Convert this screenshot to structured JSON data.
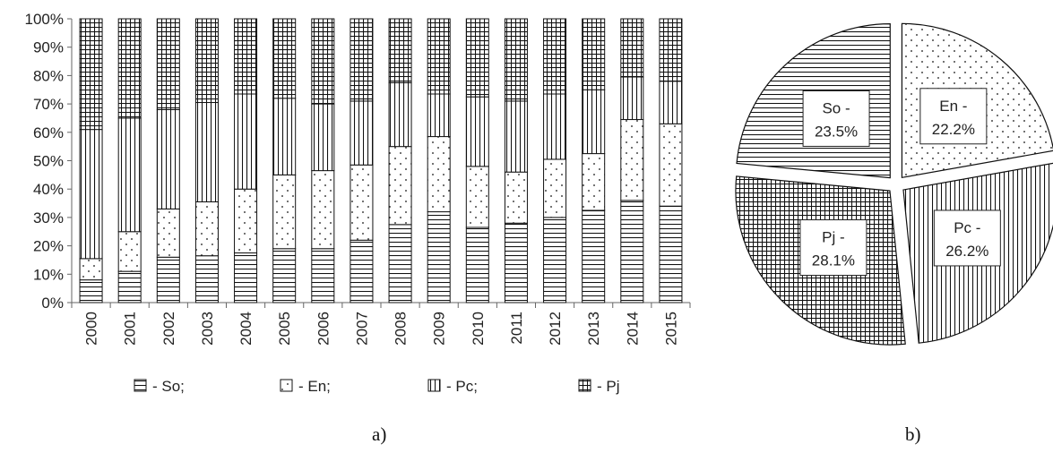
{
  "captions": {
    "a": "a)",
    "b": "b)"
  },
  "chart_data": [
    {
      "type": "bar",
      "stacked": "percent",
      "categories": [
        "2000",
        "2001",
        "2002",
        "2003",
        "2004",
        "2005",
        "2006",
        "2007",
        "2008",
        "2009",
        "2010",
        "2011",
        "2012",
        "2013",
        "2014",
        "2015"
      ],
      "series": [
        {
          "name": "So",
          "pattern": "horizontal-lines",
          "values": [
            8,
            11,
            16,
            16.5,
            17.5,
            19,
            19,
            22,
            27.5,
            32,
            26.5,
            28,
            30,
            32.5,
            36,
            34
          ]
        },
        {
          "name": "En",
          "pattern": "dots",
          "values": [
            7.5,
            14,
            17,
            19,
            22.5,
            26,
            27.5,
            26.5,
            27.5,
            26.5,
            21.5,
            18,
            20.5,
            20,
            28.5,
            29
          ]
        },
        {
          "name": "Pc",
          "pattern": "vertical-lines",
          "values": [
            45.5,
            40,
            35,
            35,
            33.5,
            27,
            23.5,
            22.5,
            22.5,
            15,
            24.5,
            25,
            23,
            22.5,
            15,
            15
          ]
        },
        {
          "name": "Pj",
          "pattern": "grid",
          "values": [
            39,
            35,
            32,
            29.5,
            26.5,
            28,
            30,
            29,
            22.5,
            26.5,
            27.5,
            29,
            26.5,
            25,
            20.5,
            22
          ]
        }
      ],
      "ylim": [
        0,
        100
      ],
      "yticks": [
        "0%",
        "10%",
        "20%",
        "30%",
        "40%",
        "50%",
        "60%",
        "70%",
        "80%",
        "90%",
        "100%"
      ],
      "legend": {
        "position": "bottom",
        "items": [
          {
            "series": "So",
            "label": "- So;"
          },
          {
            "series": "En",
            "label": "- En;"
          },
          {
            "series": "Pc",
            "label": "- Pc;"
          },
          {
            "series": "Pj",
            "label": "- Pj"
          }
        ]
      },
      "grid": false
    },
    {
      "type": "pie",
      "exploded": true,
      "slices": [
        {
          "name": "En",
          "value": 22.2,
          "label": "En -",
          "pct_label": "22.2%",
          "pattern": "dots"
        },
        {
          "name": "Pc",
          "value": 26.2,
          "label": "Pc -",
          "pct_label": "26.2%",
          "pattern": "vertical-lines"
        },
        {
          "name": "Pj",
          "value": 28.1,
          "label": "Pj -",
          "pct_label": "28.1%",
          "pattern": "grid"
        },
        {
          "name": "So",
          "value": 23.5,
          "label": "So -",
          "pct_label": "23.5%",
          "pattern": "horizontal-lines"
        }
      ]
    }
  ]
}
